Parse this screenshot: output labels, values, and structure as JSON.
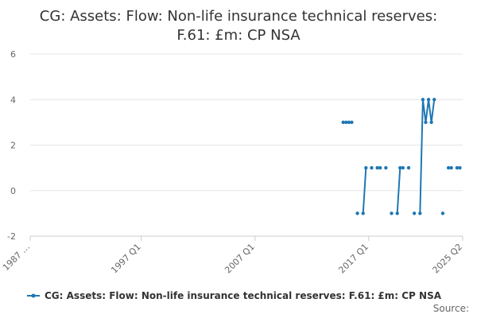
{
  "chart_data": {
    "type": "line",
    "title_lines": [
      "CG: Assets: Flow: Non-life insurance technical reserves:",
      "F.61: £m: CP NSA"
    ],
    "xlabel": "",
    "ylabel": "",
    "ylim": [
      -2,
      6
    ],
    "y_ticks": [
      -2,
      0,
      2,
      4,
      6
    ],
    "x_ticks": [
      {
        "label": "1987 …",
        "t": 1987.25
      },
      {
        "label": "1997 Q1",
        "t": 1997.0
      },
      {
        "label": "2007 Q1",
        "t": 2007.0
      },
      {
        "label": "2017 Q1",
        "t": 2017.0
      },
      {
        "label": "2025 Q2",
        "t": 2025.25
      }
    ],
    "xlim": [
      1987.25,
      2025.25
    ],
    "series": [
      {
        "name": "CG: Assets: Flow: Non-life insurance technical reserves: F.61: £m: CP NSA",
        "color": "#1f77b4",
        "points": [
          {
            "t": 2014.75,
            "y": 3
          },
          {
            "t": 2015.0,
            "y": 3
          },
          {
            "t": 2015.25,
            "y": 3
          },
          {
            "t": 2015.5,
            "y": 3
          },
          {
            "t": 2016.0,
            "y": -1
          },
          {
            "t": 2016.5,
            "y": -1
          },
          {
            "t": 2016.75,
            "y": 1
          },
          {
            "t": 2017.25,
            "y": 1
          },
          {
            "t": 2017.75,
            "y": 1
          },
          {
            "t": 2018.0,
            "y": 1
          },
          {
            "t": 2018.5,
            "y": 1
          },
          {
            "t": 2019.0,
            "y": -1
          },
          {
            "t": 2019.5,
            "y": -1
          },
          {
            "t": 2019.75,
            "y": 1
          },
          {
            "t": 2020.0,
            "y": 1
          },
          {
            "t": 2020.5,
            "y": 1
          },
          {
            "t": 2021.0,
            "y": -1
          },
          {
            "t": 2021.5,
            "y": -1
          },
          {
            "t": 2021.75,
            "y": 4
          },
          {
            "t": 2022.0,
            "y": 3
          },
          {
            "t": 2022.25,
            "y": 4
          },
          {
            "t": 2022.5,
            "y": 3
          },
          {
            "t": 2022.75,
            "y": 4
          },
          {
            "t": 2023.5,
            "y": -1
          },
          {
            "t": 2024.0,
            "y": 1
          },
          {
            "t": 2024.25,
            "y": 1
          },
          {
            "t": 2024.75,
            "y": 1
          },
          {
            "t": 2025.0,
            "y": 1
          }
        ]
      }
    ],
    "legend": {
      "position": "bottom"
    },
    "grid": true,
    "source_label": "Source:"
  }
}
